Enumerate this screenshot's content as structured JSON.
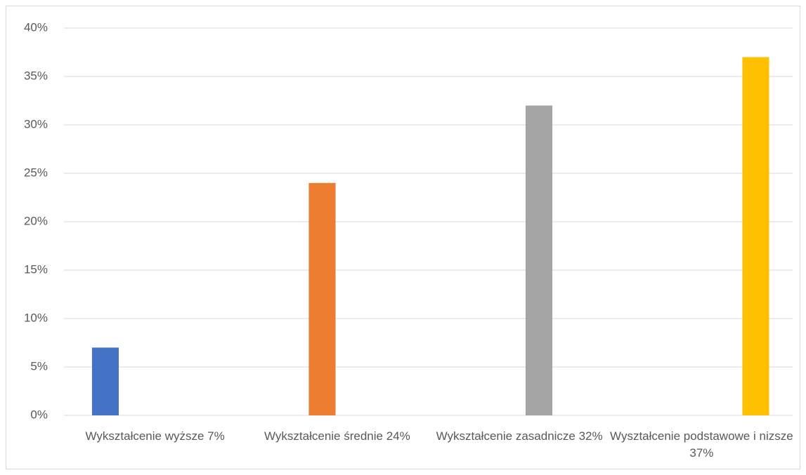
{
  "chart_data": {
    "type": "bar",
    "categories": [
      "Wykształcenie wyższe 7%",
      "Wykształcenie średnie 24%",
      "Wykształcenie zasadnicze 32%",
      "Wyształcenie podstawowe i nizsze 37%"
    ],
    "values": [
      7,
      24,
      32,
      37
    ],
    "colors": [
      "#4472c4",
      "#ed7d31",
      "#a5a5a5",
      "#ffc000"
    ],
    "ylim": [
      0,
      40
    ],
    "yticks": [
      {
        "value": 0,
        "label": "0%"
      },
      {
        "value": 5,
        "label": "5%"
      },
      {
        "value": 10,
        "label": "10%"
      },
      {
        "value": 15,
        "label": "15%"
      },
      {
        "value": 20,
        "label": "20%"
      },
      {
        "value": 25,
        "label": "25%"
      },
      {
        "value": 30,
        "label": "30%"
      },
      {
        "value": 35,
        "label": "35%"
      },
      {
        "value": 40,
        "label": "40%"
      }
    ],
    "grid": true
  }
}
